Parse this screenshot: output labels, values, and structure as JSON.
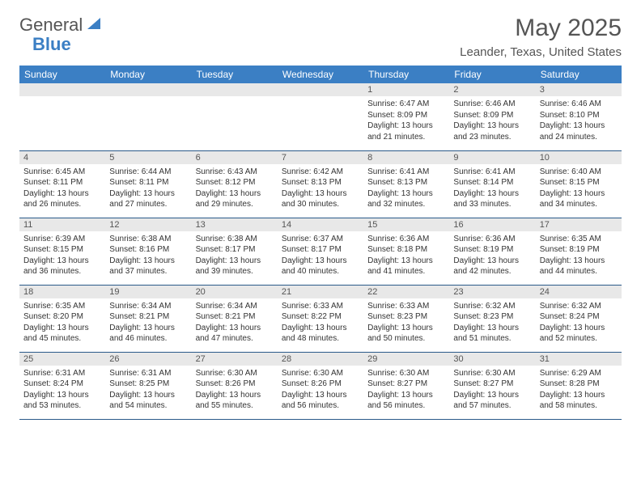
{
  "logo": {
    "general": "General",
    "blue": "Blue"
  },
  "title": "May 2025",
  "location": "Leander, Texas, United States",
  "colors": {
    "header_bg": "#3b7fc4",
    "header_text": "#ffffff",
    "daynum_bg": "#e8e8e8",
    "border": "#2a5a8a",
    "text": "#333333"
  },
  "weekdays": [
    "Sunday",
    "Monday",
    "Tuesday",
    "Wednesday",
    "Thursday",
    "Friday",
    "Saturday"
  ],
  "weeks": [
    [
      null,
      null,
      null,
      null,
      {
        "n": "1",
        "sr": "6:47 AM",
        "ss": "8:09 PM",
        "dl1": "Daylight: 13 hours",
        "dl2": "and 21 minutes."
      },
      {
        "n": "2",
        "sr": "6:46 AM",
        "ss": "8:09 PM",
        "dl1": "Daylight: 13 hours",
        "dl2": "and 23 minutes."
      },
      {
        "n": "3",
        "sr": "6:46 AM",
        "ss": "8:10 PM",
        "dl1": "Daylight: 13 hours",
        "dl2": "and 24 minutes."
      }
    ],
    [
      {
        "n": "4",
        "sr": "6:45 AM",
        "ss": "8:11 PM",
        "dl1": "Daylight: 13 hours",
        "dl2": "and 26 minutes."
      },
      {
        "n": "5",
        "sr": "6:44 AM",
        "ss": "8:11 PM",
        "dl1": "Daylight: 13 hours",
        "dl2": "and 27 minutes."
      },
      {
        "n": "6",
        "sr": "6:43 AM",
        "ss": "8:12 PM",
        "dl1": "Daylight: 13 hours",
        "dl2": "and 29 minutes."
      },
      {
        "n": "7",
        "sr": "6:42 AM",
        "ss": "8:13 PM",
        "dl1": "Daylight: 13 hours",
        "dl2": "and 30 minutes."
      },
      {
        "n": "8",
        "sr": "6:41 AM",
        "ss": "8:13 PM",
        "dl1": "Daylight: 13 hours",
        "dl2": "and 32 minutes."
      },
      {
        "n": "9",
        "sr": "6:41 AM",
        "ss": "8:14 PM",
        "dl1": "Daylight: 13 hours",
        "dl2": "and 33 minutes."
      },
      {
        "n": "10",
        "sr": "6:40 AM",
        "ss": "8:15 PM",
        "dl1": "Daylight: 13 hours",
        "dl2": "and 34 minutes."
      }
    ],
    [
      {
        "n": "11",
        "sr": "6:39 AM",
        "ss": "8:15 PM",
        "dl1": "Daylight: 13 hours",
        "dl2": "and 36 minutes."
      },
      {
        "n": "12",
        "sr": "6:38 AM",
        "ss": "8:16 PM",
        "dl1": "Daylight: 13 hours",
        "dl2": "and 37 minutes."
      },
      {
        "n": "13",
        "sr": "6:38 AM",
        "ss": "8:17 PM",
        "dl1": "Daylight: 13 hours",
        "dl2": "and 39 minutes."
      },
      {
        "n": "14",
        "sr": "6:37 AM",
        "ss": "8:17 PM",
        "dl1": "Daylight: 13 hours",
        "dl2": "and 40 minutes."
      },
      {
        "n": "15",
        "sr": "6:36 AM",
        "ss": "8:18 PM",
        "dl1": "Daylight: 13 hours",
        "dl2": "and 41 minutes."
      },
      {
        "n": "16",
        "sr": "6:36 AM",
        "ss": "8:19 PM",
        "dl1": "Daylight: 13 hours",
        "dl2": "and 42 minutes."
      },
      {
        "n": "17",
        "sr": "6:35 AM",
        "ss": "8:19 PM",
        "dl1": "Daylight: 13 hours",
        "dl2": "and 44 minutes."
      }
    ],
    [
      {
        "n": "18",
        "sr": "6:35 AM",
        "ss": "8:20 PM",
        "dl1": "Daylight: 13 hours",
        "dl2": "and 45 minutes."
      },
      {
        "n": "19",
        "sr": "6:34 AM",
        "ss": "8:21 PM",
        "dl1": "Daylight: 13 hours",
        "dl2": "and 46 minutes."
      },
      {
        "n": "20",
        "sr": "6:34 AM",
        "ss": "8:21 PM",
        "dl1": "Daylight: 13 hours",
        "dl2": "and 47 minutes."
      },
      {
        "n": "21",
        "sr": "6:33 AM",
        "ss": "8:22 PM",
        "dl1": "Daylight: 13 hours",
        "dl2": "and 48 minutes."
      },
      {
        "n": "22",
        "sr": "6:33 AM",
        "ss": "8:23 PM",
        "dl1": "Daylight: 13 hours",
        "dl2": "and 50 minutes."
      },
      {
        "n": "23",
        "sr": "6:32 AM",
        "ss": "8:23 PM",
        "dl1": "Daylight: 13 hours",
        "dl2": "and 51 minutes."
      },
      {
        "n": "24",
        "sr": "6:32 AM",
        "ss": "8:24 PM",
        "dl1": "Daylight: 13 hours",
        "dl2": "and 52 minutes."
      }
    ],
    [
      {
        "n": "25",
        "sr": "6:31 AM",
        "ss": "8:24 PM",
        "dl1": "Daylight: 13 hours",
        "dl2": "and 53 minutes."
      },
      {
        "n": "26",
        "sr": "6:31 AM",
        "ss": "8:25 PM",
        "dl1": "Daylight: 13 hours",
        "dl2": "and 54 minutes."
      },
      {
        "n": "27",
        "sr": "6:30 AM",
        "ss": "8:26 PM",
        "dl1": "Daylight: 13 hours",
        "dl2": "and 55 minutes."
      },
      {
        "n": "28",
        "sr": "6:30 AM",
        "ss": "8:26 PM",
        "dl1": "Daylight: 13 hours",
        "dl2": "and 56 minutes."
      },
      {
        "n": "29",
        "sr": "6:30 AM",
        "ss": "8:27 PM",
        "dl1": "Daylight: 13 hours",
        "dl2": "and 56 minutes."
      },
      {
        "n": "30",
        "sr": "6:30 AM",
        "ss": "8:27 PM",
        "dl1": "Daylight: 13 hours",
        "dl2": "and 57 minutes."
      },
      {
        "n": "31",
        "sr": "6:29 AM",
        "ss": "8:28 PM",
        "dl1": "Daylight: 13 hours",
        "dl2": "and 58 minutes."
      }
    ]
  ]
}
